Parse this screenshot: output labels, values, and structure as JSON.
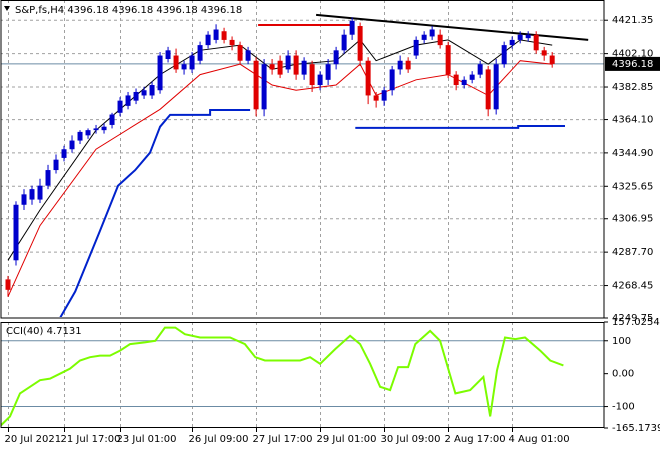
{
  "chart_data": [
    {
      "type": "candlestick",
      "title": "S&P,fs,H4 4396.18 4396.18 4396.18 4396.18",
      "categories": [
        "20 Jul 2021",
        null,
        null,
        null,
        null,
        null,
        null,
        "21 Jul 17:00",
        null,
        null,
        null,
        null,
        null,
        null,
        "23 Jul 01:00",
        null,
        null,
        null,
        null,
        null,
        null,
        null,
        null,
        "26 Jul 09:00",
        null,
        null,
        null,
        null,
        null,
        null,
        null,
        "27 Jul 17:00",
        null,
        null,
        null,
        null,
        null,
        null,
        null,
        "29 Jul 01:00",
        null,
        null,
        null,
        null,
        null,
        null,
        null,
        "30 Jul 09:00",
        null,
        null,
        null,
        null,
        null,
        null,
        null,
        "2 Aug 17:00",
        null,
        null,
        null,
        null,
        null,
        null,
        null,
        "4 Aug 01:00",
        null,
        null,
        null,
        null,
        null
      ],
      "ohlc": [
        [
          4272,
          4274,
          4262,
          4266
        ],
        [
          4283,
          4317,
          4280,
          4315
        ],
        [
          4315,
          4324,
          4312,
          4321
        ],
        [
          4318,
          4326,
          4315,
          4324
        ],
        [
          4318,
          4330,
          4316,
          4326
        ],
        [
          4326,
          4338,
          4324,
          4335
        ],
        [
          4335,
          4344,
          4333,
          4341
        ],
        [
          4342,
          4349,
          4340,
          4347
        ],
        [
          4347,
          4355,
          4345,
          4352
        ],
        [
          4352,
          4358,
          4350,
          4357
        ],
        [
          4355,
          4359,
          4353,
          4358
        ],
        [
          4358,
          4361,
          4356,
          4359
        ],
        [
          4358,
          4362,
          4356,
          4360
        ],
        [
          4361,
          4368,
          4359,
          4367
        ],
        [
          4368,
          4377,
          4366,
          4375
        ],
        [
          4372,
          4380,
          4370,
          4378
        ],
        [
          4375,
          4382,
          4373,
          4380
        ],
        [
          4378,
          4383,
          4376,
          4381
        ],
        [
          4378,
          4386,
          4376,
          4384
        ],
        [
          4381,
          4403,
          4379,
          4401
        ],
        [
          4399,
          4406,
          4397,
          4404
        ],
        [
          4401,
          4405,
          4391,
          4393
        ],
        [
          4393,
          4398,
          4390,
          4396
        ],
        [
          4393,
          4403,
          4391,
          4401
        ],
        [
          4398,
          4409,
          4396,
          4407
        ],
        [
          4407,
          4415,
          4405,
          4413
        ],
        [
          4410,
          4419,
          4408,
          4416
        ],
        [
          4415,
          4417,
          4408,
          4410
        ],
        [
          4410,
          4412,
          4404,
          4407
        ],
        [
          4407,
          4409,
          4396,
          4398
        ],
        [
          4398,
          4406,
          4396,
          4404
        ],
        [
          4398,
          4400,
          4366,
          4370
        ],
        [
          4370,
          4399,
          4366,
          4396
        ],
        [
          4396,
          4399,
          4390,
          4393
        ],
        [
          4398,
          4401,
          4388,
          4390
        ],
        [
          4393,
          4404,
          4391,
          4401
        ],
        [
          4401,
          4404,
          4387,
          4390
        ],
        [
          4390,
          4400,
          4387,
          4398
        ],
        [
          4396,
          4398,
          4380,
          4384
        ],
        [
          4384,
          4392,
          4381,
          4390
        ],
        [
          4387,
          4399,
          4384,
          4396
        ],
        [
          4396,
          4406,
          4393,
          4404
        ],
        [
          4404,
          4416,
          4402,
          4413
        ],
        [
          4413,
          4423,
          4410,
          4421
        ],
        [
          4418,
          4420,
          4395,
          4398
        ],
        [
          4398,
          4400,
          4373,
          4378
        ],
        [
          4378,
          4380,
          4371,
          4375
        ],
        [
          4375,
          4383,
          4372,
          4381
        ],
        [
          4381,
          4395,
          4378,
          4393
        ],
        [
          4393,
          4401,
          4390,
          4398
        ],
        [
          4398,
          4400,
          4391,
          4393
        ],
        [
          4401,
          4412,
          4399,
          4410
        ],
        [
          4410,
          4415,
          4408,
          4413
        ],
        [
          4412,
          4418,
          4410,
          4416
        ],
        [
          4413,
          4416,
          4405,
          4407
        ],
        [
          4407,
          4409,
          4388,
          4390
        ],
        [
          4390,
          4392,
          4381,
          4384
        ],
        [
          4384,
          4389,
          4382,
          4387
        ],
        [
          4387,
          4392,
          4385,
          4390
        ],
        [
          4390,
          4398,
          4388,
          4396
        ],
        [
          4393,
          4395,
          4366,
          4370
        ],
        [
          4370,
          4399,
          4367,
          4396
        ],
        [
          4396,
          4409,
          4394,
          4407
        ],
        [
          4407,
          4412,
          4405,
          4410
        ],
        [
          4410,
          4415,
          4408,
          4413
        ],
        [
          4411,
          4415,
          4409,
          4413
        ],
        [
          4413,
          4415,
          4402,
          4404
        ],
        [
          4404,
          4406,
          4398,
          4401
        ],
        [
          4401,
          4403,
          4394,
          4396.18
        ]
      ],
      "up_color": "#0000cc",
      "down_color": "#e00000",
      "xlim": [
        -1,
        74.6
      ],
      "ylim": [
        4249.75,
        4433
      ],
      "yticks": [
        4421.35,
        {
          "value": 4402.1,
          "label": "4402.10"
        },
        4382.85,
        {
          "value": 4364.1,
          "label": "4364.10"
        },
        {
          "value": 4344.9,
          "label": "4344.90"
        },
        4325.65,
        4306.95,
        {
          "value": 4287.7,
          "label": "4287.70"
        },
        4268.45,
        4249.75
      ],
      "grid": true,
      "last_price": 4396.18,
      "overlays": [
        {
          "color": "#000000",
          "width": 1,
          "x": [
            0,
            4,
            11,
            19,
            24,
            29,
            33,
            36,
            41,
            44,
            46,
            51,
            55,
            60,
            64,
            68
          ],
          "values": [
            4283,
            4312,
            4358,
            4390,
            4404,
            4407,
            4393,
            4396,
            4398,
            4410,
            4398,
            4407,
            4410,
            4396,
            4410,
            4407
          ]
        },
        {
          "color": "#e00000",
          "width": 1,
          "x": [
            0,
            4,
            11,
            19,
            24,
            29,
            33,
            36,
            41,
            44,
            46,
            51,
            55,
            60,
            64,
            68
          ],
          "values": [
            4262,
            4303,
            4347,
            4370,
            4390,
            4396,
            4384,
            4381,
            4384,
            4396,
            4378,
            4387,
            4390,
            4378,
            4398,
            4396
          ]
        },
        {
          "color": "#0022cc",
          "width": 2,
          "x": [
            6.5,
            8.4,
            11.5,
            13.75,
            15.9,
            17.75,
            19,
            20.25,
            25.25,
            25.25,
            30.25,
            null,
            43.4,
            63.75,
            63.75,
            69.6
          ],
          "values": [
            4249.75,
            4265,
            4300,
            4326,
            4335,
            4345,
            4360,
            4366.8,
            4366.8,
            4369.6,
            4369.6,
            null,
            4359.3,
            4359.3,
            4360.4,
            4360.4
          ]
        },
        {
          "color": "#000000",
          "width": 2,
          "x": [
            38.5,
            72.5
          ],
          "values": [
            4424.4,
            4410
          ]
        },
        {
          "color": "#e00000",
          "width": 2,
          "x": [
            31.25,
            42.75
          ],
          "values": [
            4418.6,
            4418.6
          ]
        }
      ]
    },
    {
      "type": "line",
      "title": "CCI(40) 4.7131",
      "color": "#7cfc00",
      "x": [
        -1,
        0.25,
        1.5,
        2.75,
        4,
        5.25,
        6.5,
        7.75,
        9,
        10.25,
        11.5,
        12.75,
        14,
        15.25,
        17.1,
        18.4,
        19.6,
        20.9,
        22.1,
        24,
        25.9,
        27.75,
        29.6,
        30.9,
        32.1,
        34,
        36.5,
        37.75,
        39,
        40.9,
        42.75,
        44,
        45.25,
        46.5,
        47.75,
        48.75,
        50,
        50.9,
        52.75,
        54,
        55.9,
        57.75,
        59.4,
        60.25,
        61.1,
        62.1,
        63.4,
        64.6,
        66.5,
        67.75,
        69.4
      ],
      "values": [
        -160,
        -130,
        -60,
        -40,
        -20,
        -15,
        0,
        15,
        40,
        50,
        55,
        55,
        70,
        90,
        95,
        100,
        140,
        140,
        120,
        110,
        110,
        110,
        90,
        50,
        40,
        40,
        40,
        50,
        30,
        75,
        115,
        90,
        30,
        -40,
        -50,
        20,
        20,
        90,
        130,
        100,
        -60,
        -50,
        -10,
        -130,
        10,
        110,
        105,
        110,
        70,
        40,
        25
      ],
      "xlim": [
        -1,
        74.6
      ],
      "ylim": [
        -165.1739,
        157.0254
      ],
      "yticks": [
        157.0254,
        100,
        {
          "value": 0,
          "label": "0.00"
        },
        -100,
        -165.1739
      ],
      "levels": [
        100,
        -100
      ],
      "level_color": "#6b8ba4"
    }
  ]
}
